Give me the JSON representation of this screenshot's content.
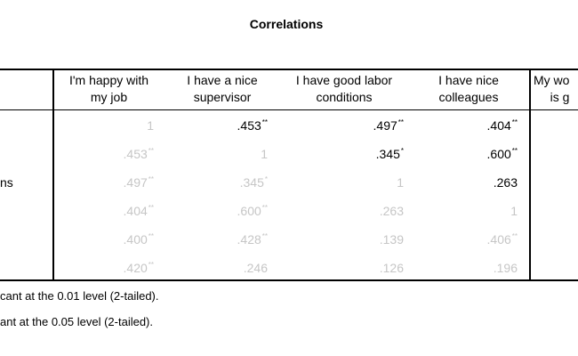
{
  "title": "Correlations",
  "headers": [
    "I'm happy with\nmy job",
    "I have a nice\nsupervisor",
    "I have good labor\nconditions",
    "I have nice\ncolleagues",
    "My wo\nis g"
  ],
  "row_label": "ns",
  "rows": [
    [
      {
        "v": "1",
        "s": "",
        "dim": true
      },
      {
        "v": ".453",
        "s": "**",
        "dim": false
      },
      {
        "v": ".497",
        "s": "**",
        "dim": false
      },
      {
        "v": ".404",
        "s": "**",
        "dim": false
      }
    ],
    [
      {
        "v": ".453",
        "s": "**",
        "dim": true
      },
      {
        "v": "1",
        "s": "",
        "dim": true
      },
      {
        "v": ".345",
        "s": "*",
        "dim": false
      },
      {
        "v": ".600",
        "s": "**",
        "dim": false
      }
    ],
    [
      {
        "v": ".497",
        "s": "**",
        "dim": true
      },
      {
        "v": ".345",
        "s": "*",
        "dim": true
      },
      {
        "v": "1",
        "s": "",
        "dim": true
      },
      {
        "v": ".263",
        "s": "",
        "dim": false
      }
    ],
    [
      {
        "v": ".404",
        "s": "**",
        "dim": true
      },
      {
        "v": ".600",
        "s": "**",
        "dim": true
      },
      {
        "v": ".263",
        "s": "",
        "dim": true
      },
      {
        "v": "1",
        "s": "",
        "dim": true
      }
    ],
    [
      {
        "v": ".400",
        "s": "**",
        "dim": true
      },
      {
        "v": ".428",
        "s": "**",
        "dim": true
      },
      {
        "v": ".139",
        "s": "",
        "dim": true
      },
      {
        "v": ".406",
        "s": "**",
        "dim": true
      }
    ],
    [
      {
        "v": ".420",
        "s": "**",
        "dim": true
      },
      {
        "v": ".246",
        "s": "",
        "dim": true
      },
      {
        "v": ".126",
        "s": "",
        "dim": true
      },
      {
        "v": ".196",
        "s": "",
        "dim": true
      }
    ]
  ],
  "footnotes": [
    "cant at the 0.01 level (2-tailed).",
    "ant at the 0.05 level (2-tailed)."
  ]
}
